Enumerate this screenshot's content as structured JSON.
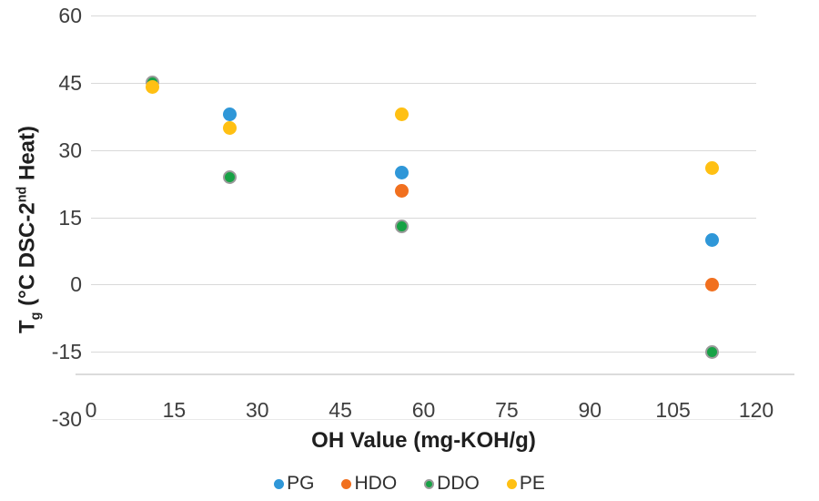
{
  "chart_data": {
    "type": "scatter",
    "title": "",
    "xlabel": "OH Value (mg-KOH/g)",
    "ylabel": "Tg (°C DSC-2nd Heat)",
    "ylabel_parts": {
      "base": "T",
      "sub": "g",
      "mid": " (°C DSC-2",
      "sup": "nd",
      "end": " Heat)"
    },
    "xlim": [
      0,
      120
    ],
    "ylim": [
      -30,
      60
    ],
    "x_ticks": [
      0,
      15,
      30,
      45,
      60,
      75,
      90,
      105,
      120
    ],
    "y_ticks": [
      60,
      45,
      30,
      15,
      0,
      -15,
      -30
    ],
    "grid": "horizontal",
    "legend_position": "bottom",
    "series": [
      {
        "name": "PG",
        "color": "#2F97D8",
        "points": [
          {
            "x": 25,
            "y": 38
          },
          {
            "x": 56,
            "y": 25
          },
          {
            "x": 112,
            "y": 10
          }
        ]
      },
      {
        "name": "HDO",
        "color": "#F1701F",
        "points": [
          {
            "x": 56,
            "y": 21
          },
          {
            "x": 112,
            "y": 0
          }
        ]
      },
      {
        "name": "DDO",
        "color": "#17A245",
        "outline": "#9B9B9B",
        "points": [
          {
            "x": 11,
            "y": 45
          },
          {
            "x": 25,
            "y": 24
          },
          {
            "x": 56,
            "y": 13
          },
          {
            "x": 112,
            "y": -15
          }
        ]
      },
      {
        "name": "PE",
        "color": "#FFC013",
        "points": [
          {
            "x": 11,
            "y": 44
          },
          {
            "x": 25,
            "y": 35
          },
          {
            "x": 56,
            "y": 38
          },
          {
            "x": 112,
            "y": 26
          }
        ]
      }
    ],
    "colors": {
      "grid": "#D9D9D9",
      "axis_line": "#DBDBDB",
      "tick_text": "#3E3E3E",
      "title_text": "#1F1F1F"
    }
  }
}
